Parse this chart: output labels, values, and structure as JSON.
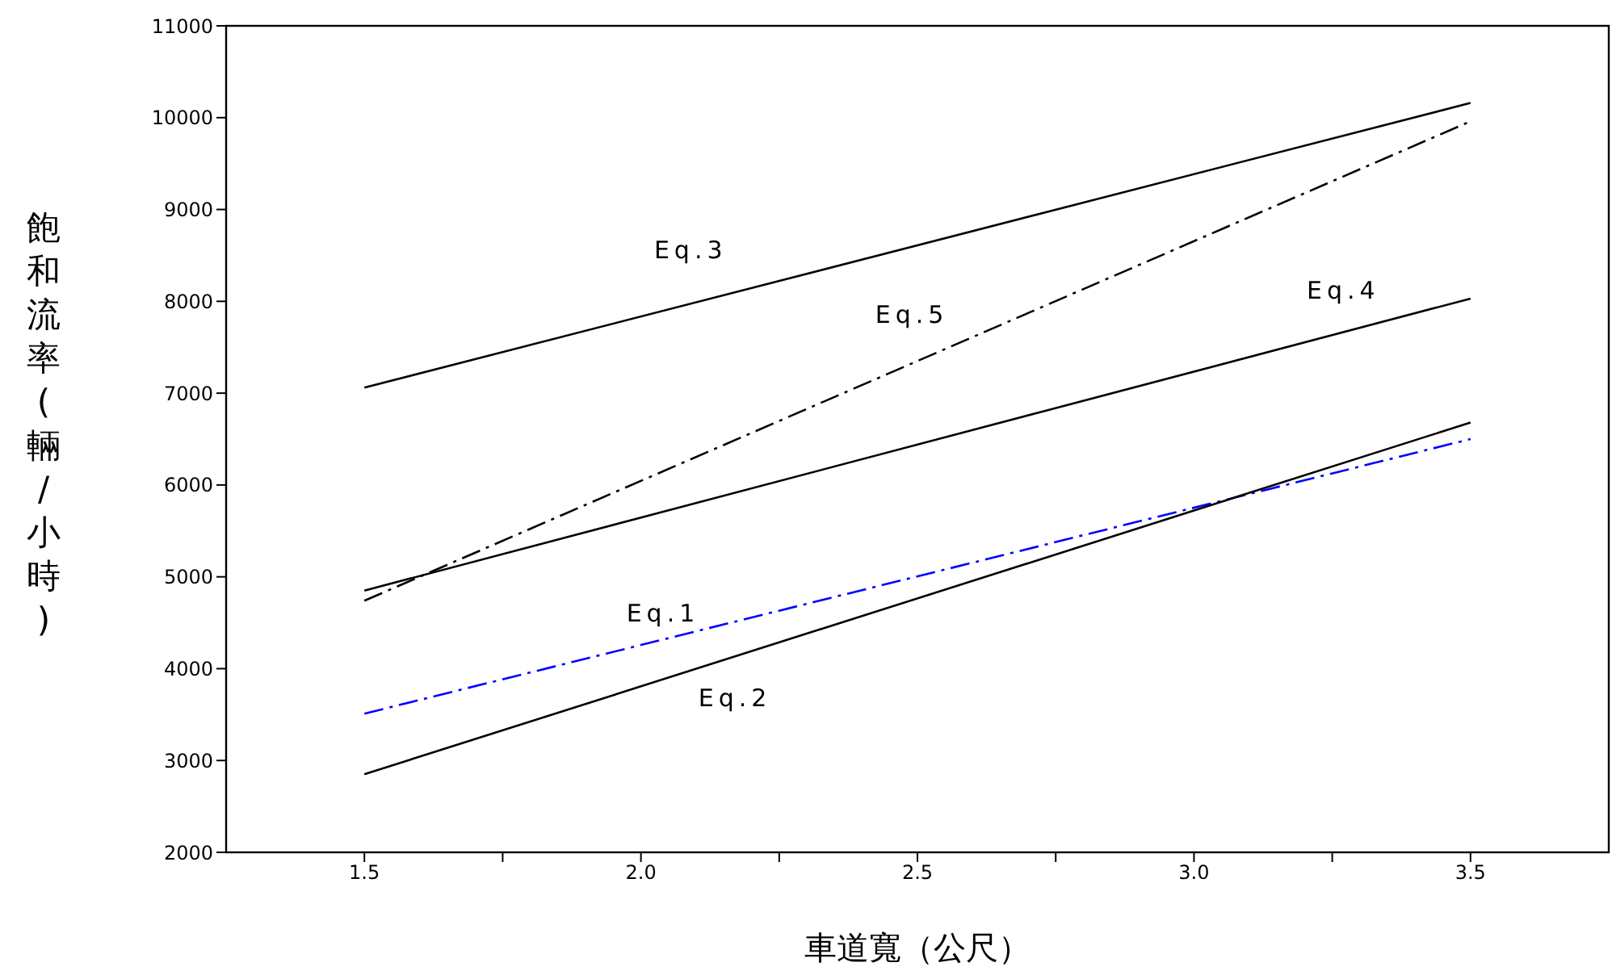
{
  "chart_data": {
    "type": "line",
    "xlabel": "車道寬（公尺）",
    "ylabel": "飽和流率(輛/小時)",
    "x": [
      1.5,
      3.5
    ],
    "series": [
      {
        "name": "Eq.1",
        "color": "#0000ff",
        "values": [
          3510,
          6500
        ],
        "line_style": "dashed"
      },
      {
        "name": "Eq.2",
        "color": "#000000",
        "values": [
          2850,
          6680
        ],
        "line_style": "solid"
      },
      {
        "name": "Eq.3",
        "color": "#000000",
        "values": [
          7060,
          10160
        ],
        "line_style": "solid"
      },
      {
        "name": "Eq.4",
        "color": "#000000",
        "values": [
          4850,
          8030
        ],
        "line_style": "solid"
      },
      {
        "name": "Eq.5",
        "color": "#000000",
        "values": [
          4740,
          9960
        ],
        "line_style": "dashed"
      }
    ],
    "xlim": [
      1.25,
      3.75
    ],
    "xticks": [
      1.5,
      {
        "value": 1.75,
        "label": null
      },
      "2.0",
      {
        "value": 2.25,
        "label": null
      },
      2.5,
      {
        "value": 2.75,
        "label": null
      },
      "3.0",
      {
        "value": 3.25,
        "label": null
      },
      3.5
    ],
    "ylim": [
      2000,
      11000
    ],
    "yticks": [
      2000,
      3000,
      4000,
      5000,
      6000,
      7000,
      8000,
      9000,
      10000,
      11000
    ],
    "grid": false,
    "marker": "none"
  }
}
